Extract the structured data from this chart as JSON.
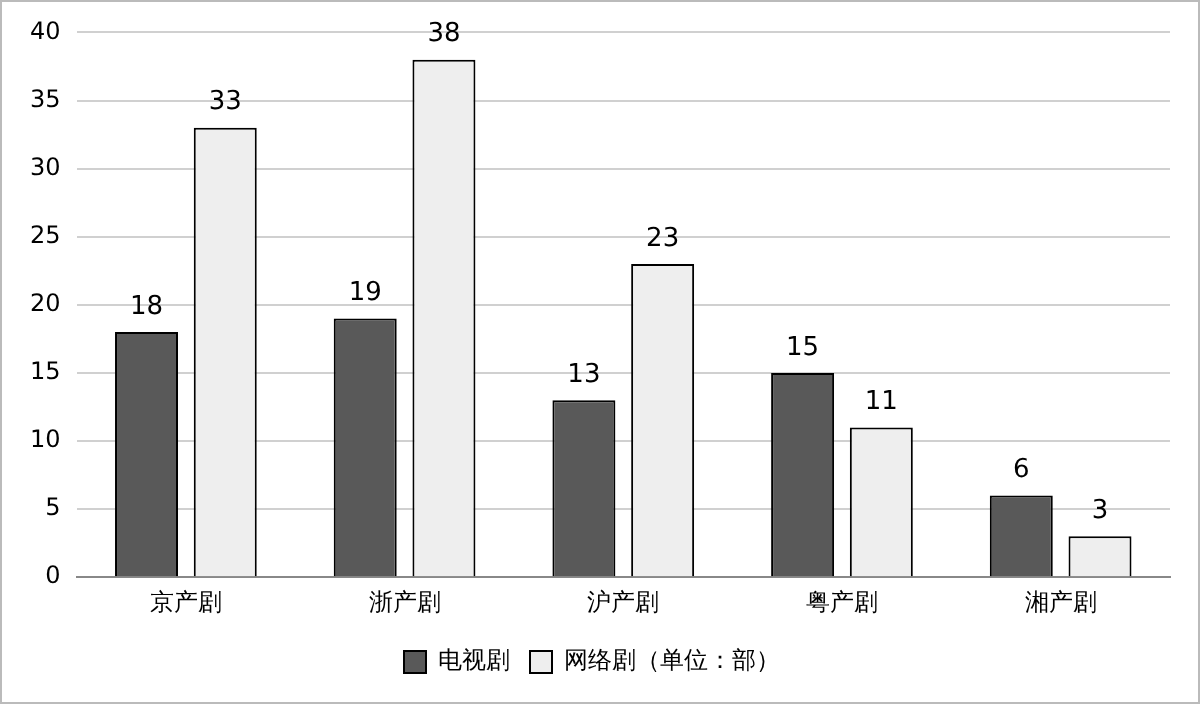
{
  "chart_data": {
    "type": "bar",
    "categories": [
      "京产剧",
      "浙产剧",
      "沪产剧",
      "粤产剧",
      "湘产剧"
    ],
    "series": [
      {
        "name": "电视剧",
        "color": "#595959",
        "values": [
          18,
          19,
          13,
          15,
          6
        ]
      },
      {
        "name": "网络剧（单位：部）",
        "color": "#eeeeee",
        "values": [
          33,
          38,
          23,
          11,
          3
        ]
      }
    ],
    "ylim": [
      0,
      40
    ],
    "yticks": [
      0,
      5,
      10,
      15,
      20,
      25,
      30,
      35,
      40
    ],
    "grid": "y",
    "legend": "bottom",
    "data_labels": true
  }
}
